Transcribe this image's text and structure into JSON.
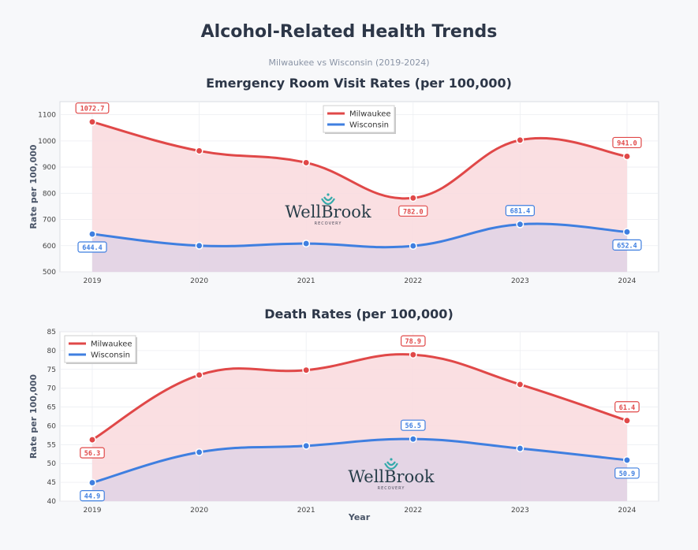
{
  "title": "Alcohol-Related Health Trends",
  "subtitle": "Milwaukee vs Wisconsin (2019-2024)",
  "colors": {
    "milwaukee": "#e04848",
    "wisconsin": "#3f7fe0",
    "mke_fill": "#f9dcdf",
    "wi_fill": "#dfd3e5"
  },
  "logo": {
    "name": "WellBrook",
    "tagline": "RECOVERY"
  },
  "chart_data": [
    {
      "type": "line",
      "title": "Emergency Room Visit Rates (per 100,000)",
      "xlabel": "",
      "ylabel": "Rate per 100,000",
      "x": [
        "2019",
        "2020",
        "2021",
        "2022",
        "2023",
        "2024"
      ],
      "ylim": [
        500,
        1150
      ],
      "yticks": [
        500,
        600,
        700,
        800,
        900,
        1000,
        1100
      ],
      "legend_position": "top-center",
      "grid": true,
      "series": [
        {
          "name": "Milwaukee",
          "values": [
            1072.7,
            962,
            917,
            782.0,
            1003,
            941.0
          ],
          "labels": [
            "1072.7",
            null,
            null,
            "782.0",
            null,
            "941.0"
          ]
        },
        {
          "name": "Wisconsin",
          "values": [
            644.4,
            600,
            608,
            599,
            681.4,
            652.4
          ],
          "labels": [
            "644.4",
            null,
            null,
            null,
            "681.4",
            "652.4"
          ]
        }
      ]
    },
    {
      "type": "line",
      "title": "Death Rates (per 100,000)",
      "xlabel": "Year",
      "ylabel": "Rate per 100,000",
      "x": [
        "2019",
        "2020",
        "2021",
        "2022",
        "2023",
        "2024"
      ],
      "ylim": [
        40,
        85
      ],
      "yticks": [
        40,
        45,
        50,
        55,
        60,
        65,
        70,
        75,
        80,
        85
      ],
      "legend_position": "top-left",
      "grid": true,
      "series": [
        {
          "name": "Milwaukee",
          "values": [
            56.3,
            73.5,
            74.8,
            78.9,
            71.0,
            61.4
          ],
          "labels": [
            "56.3",
            null,
            null,
            "78.9",
            null,
            "61.4"
          ]
        },
        {
          "name": "Wisconsin",
          "values": [
            44.9,
            53.0,
            54.7,
            56.5,
            54.0,
            50.9
          ],
          "labels": [
            "44.9",
            null,
            null,
            "56.5",
            null,
            "50.9"
          ]
        }
      ]
    }
  ]
}
